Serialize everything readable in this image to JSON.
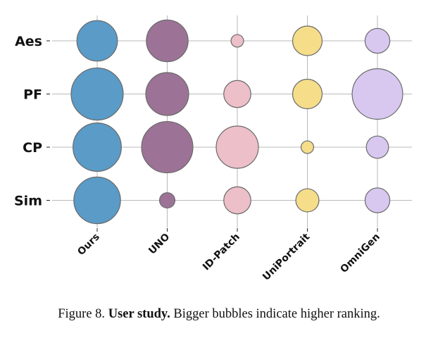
{
  "chart_data": {
    "type": "bubble",
    "title": "",
    "xlabel": "",
    "ylabel": "",
    "categories_x": [
      "Ours",
      "UNO",
      "ID-Patch",
      "UniPortrait",
      "OmniGen"
    ],
    "categories_y": [
      "Aes",
      "PF",
      "CP",
      "Sim"
    ],
    "colors": {
      "Ours": "#5a9bc7",
      "UNO": "#9c7396",
      "ID-Patch": "#edbfc9",
      "UniPortrait": "#f5dd8a",
      "OmniGen": "#d8c8f0"
    },
    "series": [
      {
        "name": "Ours",
        "values": {
          "Aes": 8.3,
          "PF": 13.7,
          "CP": 11.8,
          "Sim": 11.0
        }
      },
      {
        "name": "UNO",
        "values": {
          "Aes": 8.8,
          "PF": 9.3,
          "CP": 13.3,
          "Sim": 1.2
        }
      },
      {
        "name": "ID-Patch",
        "values": {
          "Aes": 0.8,
          "PF": 3.7,
          "CP": 9.0,
          "Sim": 3.7
        }
      },
      {
        "name": "UniPortrait",
        "values": {
          "Aes": 4.4,
          "PF": 4.4,
          "CP": 0.8,
          "Sim": 2.7
        }
      },
      {
        "name": "OmniGen",
        "values": {
          "Aes": 3.1,
          "PF": 12.9,
          "CP": 2.5,
          "Sim": 3.1
        }
      }
    ]
  },
  "caption": {
    "prefix": "Figure 8.",
    "bold": "User study.",
    "rest": "Bigger bubbles indicate higher ranking."
  }
}
